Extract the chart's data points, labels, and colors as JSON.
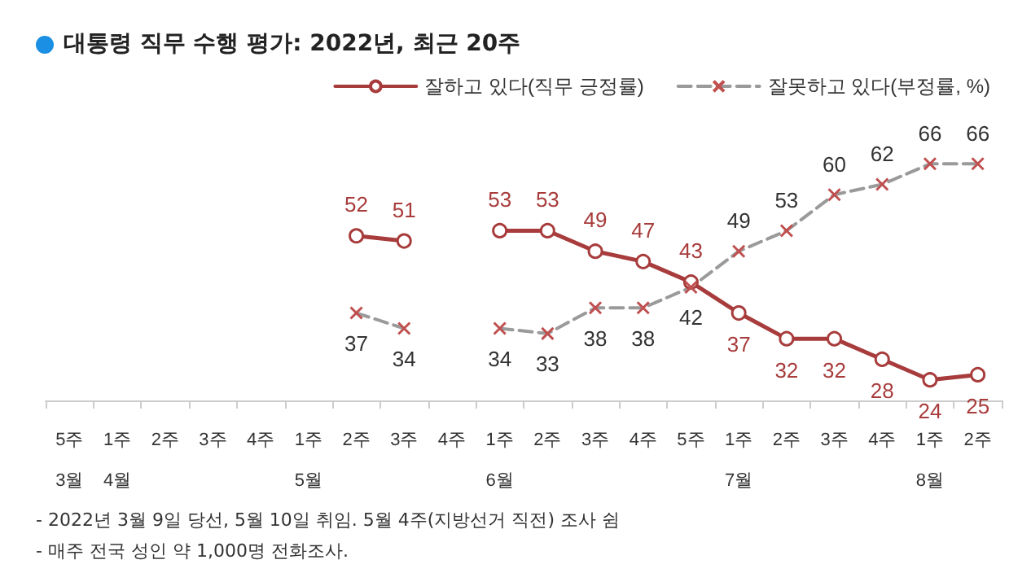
{
  "chart_data": {
    "type": "line",
    "title": "대통령 직무 수행 평가: 2022년, 최근 20주",
    "categories": [
      "5주\n3월",
      "1주\n4월",
      "2주",
      "3주",
      "4주",
      "1주\n5월",
      "2주",
      "3주",
      "4주",
      "1주\n6월",
      "2주",
      "3주",
      "4주",
      "5주",
      "1주\n7월",
      "2주",
      "3주",
      "4주",
      "1주\n8월",
      "2주"
    ],
    "series": [
      {
        "name": "잘하고 있다(직무 긍정률)",
        "color": "#a83c3c",
        "marker": "circle",
        "line_style": "solid",
        "values": [
          null,
          null,
          null,
          null,
          null,
          null,
          52,
          51,
          null,
          53,
          53,
          49,
          47,
          43,
          37,
          32,
          32,
          28,
          24,
          25
        ]
      },
      {
        "name": "잘못하고 있다(부정률, %)",
        "color": "#9a9a9a",
        "marker": "cross",
        "line_style": "dashed",
        "values": [
          null,
          null,
          null,
          null,
          null,
          null,
          37,
          34,
          null,
          34,
          33,
          38,
          38,
          42,
          49,
          53,
          60,
          62,
          66,
          66
        ]
      }
    ],
    "data_labels": true,
    "legend": "top right",
    "grid": false,
    "annotations": [
      "- 2022년 3월 9일 당선, 5월 10일 취임. 5월 4주(지방선거 직전) 조사 쉼",
      "- 매주 전국 성인 약 1,000명 전화조사."
    ]
  }
}
